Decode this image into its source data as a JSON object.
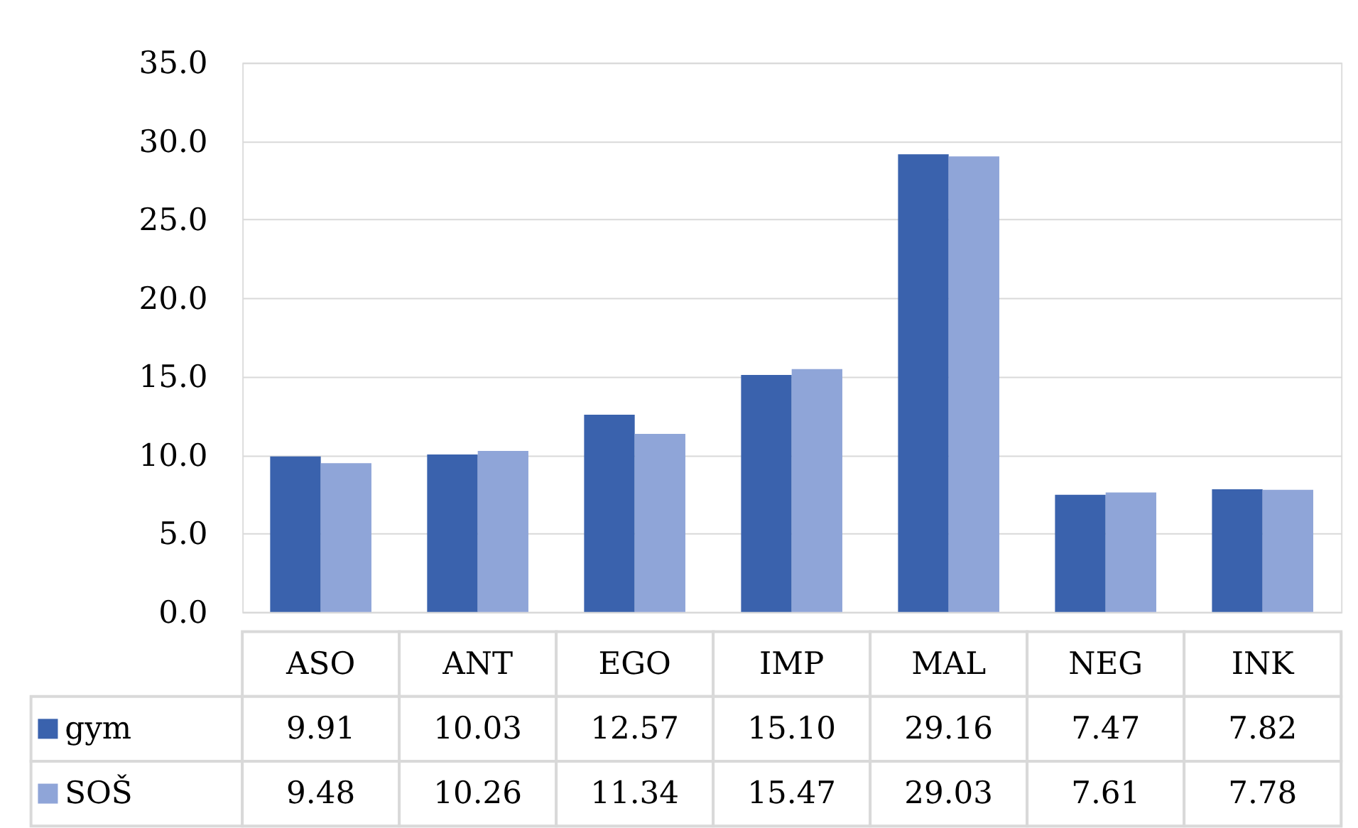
{
  "chart_data": {
    "type": "bar",
    "categories": [
      "ASO",
      "ANT",
      "EGO",
      "IMP",
      "MAL",
      "NEG",
      "INK"
    ],
    "series": [
      {
        "name": "gym",
        "color": "#3a62ad",
        "values": [
          9.91,
          10.03,
          12.57,
          15.1,
          29.16,
          7.47,
          7.82
        ],
        "value_labels": [
          "9.91",
          "10.03",
          "12.57",
          "15.10",
          "29.16",
          "7.47",
          "7.82"
        ]
      },
      {
        "name": "SOŠ",
        "color": "#8fa5d8",
        "values": [
          9.48,
          10.26,
          11.34,
          15.47,
          29.03,
          7.61,
          7.78
        ],
        "value_labels": [
          "9.48",
          "10.26",
          "11.34",
          "15.47",
          "29.03",
          "7.61",
          "7.78"
        ]
      }
    ],
    "ylim": [
      0,
      35
    ],
    "yticks": [
      {
        "value": 0,
        "label": "0.0"
      },
      {
        "value": 5,
        "label": "5.0"
      },
      {
        "value": 10,
        "label": "10.0"
      },
      {
        "value": 15,
        "label": "15.0"
      },
      {
        "value": 20,
        "label": "20.0"
      },
      {
        "value": 25,
        "label": "25.0"
      },
      {
        "value": 30,
        "label": "30.0"
      },
      {
        "value": 35,
        "label": "35.0"
      }
    ],
    "grid": "y",
    "legend": "bottom"
  }
}
